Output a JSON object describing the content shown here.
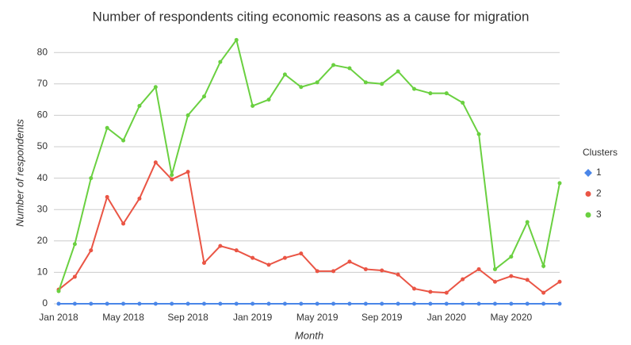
{
  "chart_data": {
    "type": "line",
    "title": "Number of respondents citing economic reasons as a cause for migration",
    "x_label": "Month",
    "y_label": "Number of respondents",
    "legend_title": "Clusters",
    "legend_position": "right",
    "grid": true,
    "categories": [
      "Jan 2018",
      null,
      null,
      null,
      "May 2018",
      null,
      null,
      null,
      "Sep 2018",
      null,
      null,
      null,
      "Jan 2019",
      null,
      null,
      null,
      "May 2019",
      null,
      null,
      null,
      "Sep 2019",
      null,
      null,
      null,
      "Jan 2020",
      null,
      null,
      null,
      "May 2020",
      null,
      null,
      null
    ],
    "ylim": [
      0,
      88
    ],
    "yticks": [
      0,
      10,
      20,
      30,
      40,
      50,
      60,
      70,
      80
    ],
    "series": [
      {
        "name": "1",
        "color": "#4a86e8",
        "values": [
          0,
          0,
          0,
          0,
          0,
          0,
          0,
          0,
          0,
          0,
          0,
          0,
          0,
          0,
          0,
          0,
          0,
          0,
          0,
          0,
          0,
          0,
          0,
          0,
          0,
          0,
          0,
          0,
          0,
          0,
          0,
          0
        ]
      },
      {
        "name": "2",
        "color": "#ea5545",
        "values": [
          4.5,
          8.6,
          17,
          34,
          25.5,
          33.5,
          45,
          39.6,
          42,
          13,
          18.4,
          17,
          14.6,
          12.4,
          14.6,
          16,
          10.4,
          10.4,
          13.4,
          11,
          10.6,
          9.3,
          4.8,
          3.8,
          3.5,
          7.8,
          11,
          7,
          8.8,
          7.6,
          3.5,
          7
        ]
      },
      {
        "name": "3",
        "color": "#6ad040",
        "values": [
          4,
          19,
          40,
          56,
          52,
          63,
          69,
          41,
          60,
          66,
          77,
          84,
          63,
          65,
          73,
          69,
          70.5,
          76,
          75,
          70.5,
          70,
          74,
          68.4,
          67,
          67,
          64,
          54,
          11,
          15,
          26,
          12,
          38.4
        ]
      }
    ]
  }
}
